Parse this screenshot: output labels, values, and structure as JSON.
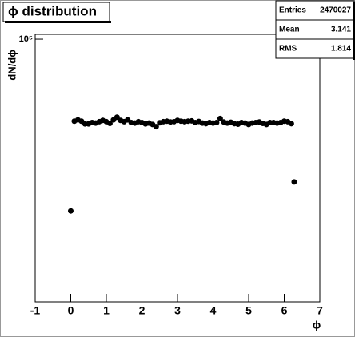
{
  "chart_data": {
    "type": "scatter",
    "title": "ϕ distribution",
    "y_label": "dN/dϕ",
    "x_label": "ϕ",
    "x": [
      0,
      0.1,
      0.2,
      0.3,
      0.4,
      0.5,
      0.6,
      0.7,
      0.8,
      0.9,
      1.0,
      1.1,
      1.2,
      1.3,
      1.4,
      1.5,
      1.6,
      1.7,
      1.8,
      1.9,
      2.0,
      2.1,
      2.2,
      2.3,
      2.4,
      2.5,
      2.6,
      2.7,
      2.8,
      2.9,
      3.0,
      3.1,
      3.2,
      3.3,
      3.4,
      3.5,
      3.6,
      3.7,
      3.8,
      3.9,
      4.0,
      4.1,
      4.2,
      4.3,
      4.4,
      4.5,
      4.6,
      4.7,
      4.8,
      4.9,
      5.0,
      5.1,
      5.2,
      5.3,
      5.4,
      5.5,
      5.6,
      5.7,
      5.8,
      5.9,
      6.0,
      6.1,
      6.2,
      6.28
    ],
    "values": [
      34900,
      60500,
      61000,
      60500,
      59500,
      59500,
      60000,
      59800,
      60300,
      60800,
      60300,
      59700,
      61000,
      62000,
      60800,
      60300,
      61000,
      60000,
      59800,
      60300,
      60000,
      59500,
      59800,
      59300,
      58500,
      59900,
      60300,
      60500,
      60200,
      60300,
      60800,
      60500,
      60300,
      60500,
      60600,
      60000,
      60400,
      59800,
      59600,
      60000,
      59800,
      60000,
      61500,
      60200,
      59800,
      60100,
      59600,
      59400,
      60000,
      59800,
      59300,
      59800,
      60000,
      60200,
      59700,
      59300,
      60000,
      60000,
      59800,
      60000,
      60500,
      60300,
      59600,
      41700
    ],
    "color": "#000000",
    "xlim": [
      -1,
      7
    ],
    "xticks": [
      -1,
      0,
      1,
      2,
      3,
      4,
      5,
      6,
      7
    ],
    "ylim": [
      20000,
      103000
    ],
    "yticks": [
      {
        "value": 100000,
        "label": "10⁵"
      }
    ],
    "log_y": true,
    "stats": {
      "labels": [
        "Entries",
        "Mean",
        "RMS"
      ],
      "values": [
        2470027,
        3.141,
        1.814
      ]
    }
  }
}
